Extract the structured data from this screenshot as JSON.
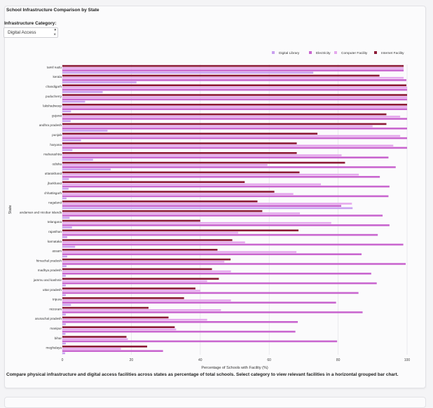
{
  "page": {
    "title": "School Infrastructure Comparison by State",
    "filter_label": "Infrastructure Category:",
    "filter_value": "Digital Access",
    "filter_clear": "×",
    "filter_caret": "▾",
    "description": "Compare physical infrastructure and digital access facilities across states as percentage of total schools. Select category to view relevant facilities in a horizontal grouped bar chart."
  },
  "chart_data": {
    "type": "bar",
    "orientation": "horizontal",
    "title": "",
    "xlabel": "Percentage of Schools with Facility (%)",
    "ylabel": "State",
    "xlim": [
      0,
      100
    ],
    "xticks": [
      0,
      20,
      40,
      60,
      80,
      100
    ],
    "grid": true,
    "legend": "top-right",
    "categories": [
      "tamil nadu",
      "kerala",
      "chandigarh",
      "puducherry",
      "lakshadweep",
      "gujarat",
      "andhra pradesh",
      "punjab",
      "haryana",
      "maharashtra",
      "odisha",
      "uttarakhand",
      "jharkhand",
      "chhattisgarh",
      "nagaland",
      "andaman and nicobar islands",
      "telangana",
      "rajasthan",
      "karnataka",
      "assam",
      "himachal pradesh",
      "madhya pradesh",
      "jammu and kashmir",
      "uttar pradesh",
      "tripura",
      "mizoram",
      "arunachal pradesh",
      "manipur",
      "bihar",
      "meghalaya"
    ],
    "series": [
      {
        "name": "Digital Library",
        "color": "#c9a0f0",
        "values": [
          72.8,
          21.5,
          11.7,
          6.6,
          2.5,
          2.4,
          13.1,
          5.4,
          2.9,
          8.9,
          14.0,
          1.9,
          1.8,
          1.2,
          84.2,
          2.1,
          2.8,
          1.4,
          3.7,
          1.4,
          1.2,
          1.0,
          1.0,
          1.0,
          2.5,
          1.0,
          1.0,
          0.9,
          1.0,
          0.8
        ]
      },
      {
        "name": "Electricity",
        "color": "#c966cf",
        "values": [
          99.0,
          99.8,
          100.0,
          100.0,
          100.0,
          100.0,
          100.0,
          100.0,
          100.0,
          94.6,
          96.7,
          92.1,
          94.9,
          94.6,
          80.9,
          92.9,
          94.9,
          91.5,
          98.9,
          86.8,
          99.6,
          89.6,
          91.2,
          85.9,
          79.4,
          87.1,
          68.3,
          67.6,
          79.7,
          29.2
        ]
      },
      {
        "name": "Computer Facility",
        "color": "#e5a8ed",
        "values": [
          99.0,
          99.0,
          100.0,
          100.0,
          100.0,
          98.0,
          90.0,
          98.0,
          96.0,
          81.0,
          59.5,
          86.0,
          75.0,
          67.0,
          84.0,
          68.9,
          78.0,
          51.0,
          53.0,
          67.9,
          47.0,
          48.9,
          42.0,
          40.0,
          48.9,
          46.0,
          42.0,
          33.0,
          19.0,
          17.0
        ]
      },
      {
        "name": "Internet Facility",
        "color": "#8c1a36",
        "values": [
          99.0,
          92.0,
          99.8,
          100.0,
          100.0,
          94.0,
          94.0,
          74.0,
          68.0,
          68.0,
          82.0,
          68.8,
          52.9,
          61.5,
          56.6,
          58.0,
          40.0,
          68.5,
          49.3,
          45.0,
          48.8,
          43.4,
          45.4,
          38.6,
          35.3,
          25.0,
          30.8,
          32.6,
          18.6,
          24.6
        ]
      }
    ]
  }
}
